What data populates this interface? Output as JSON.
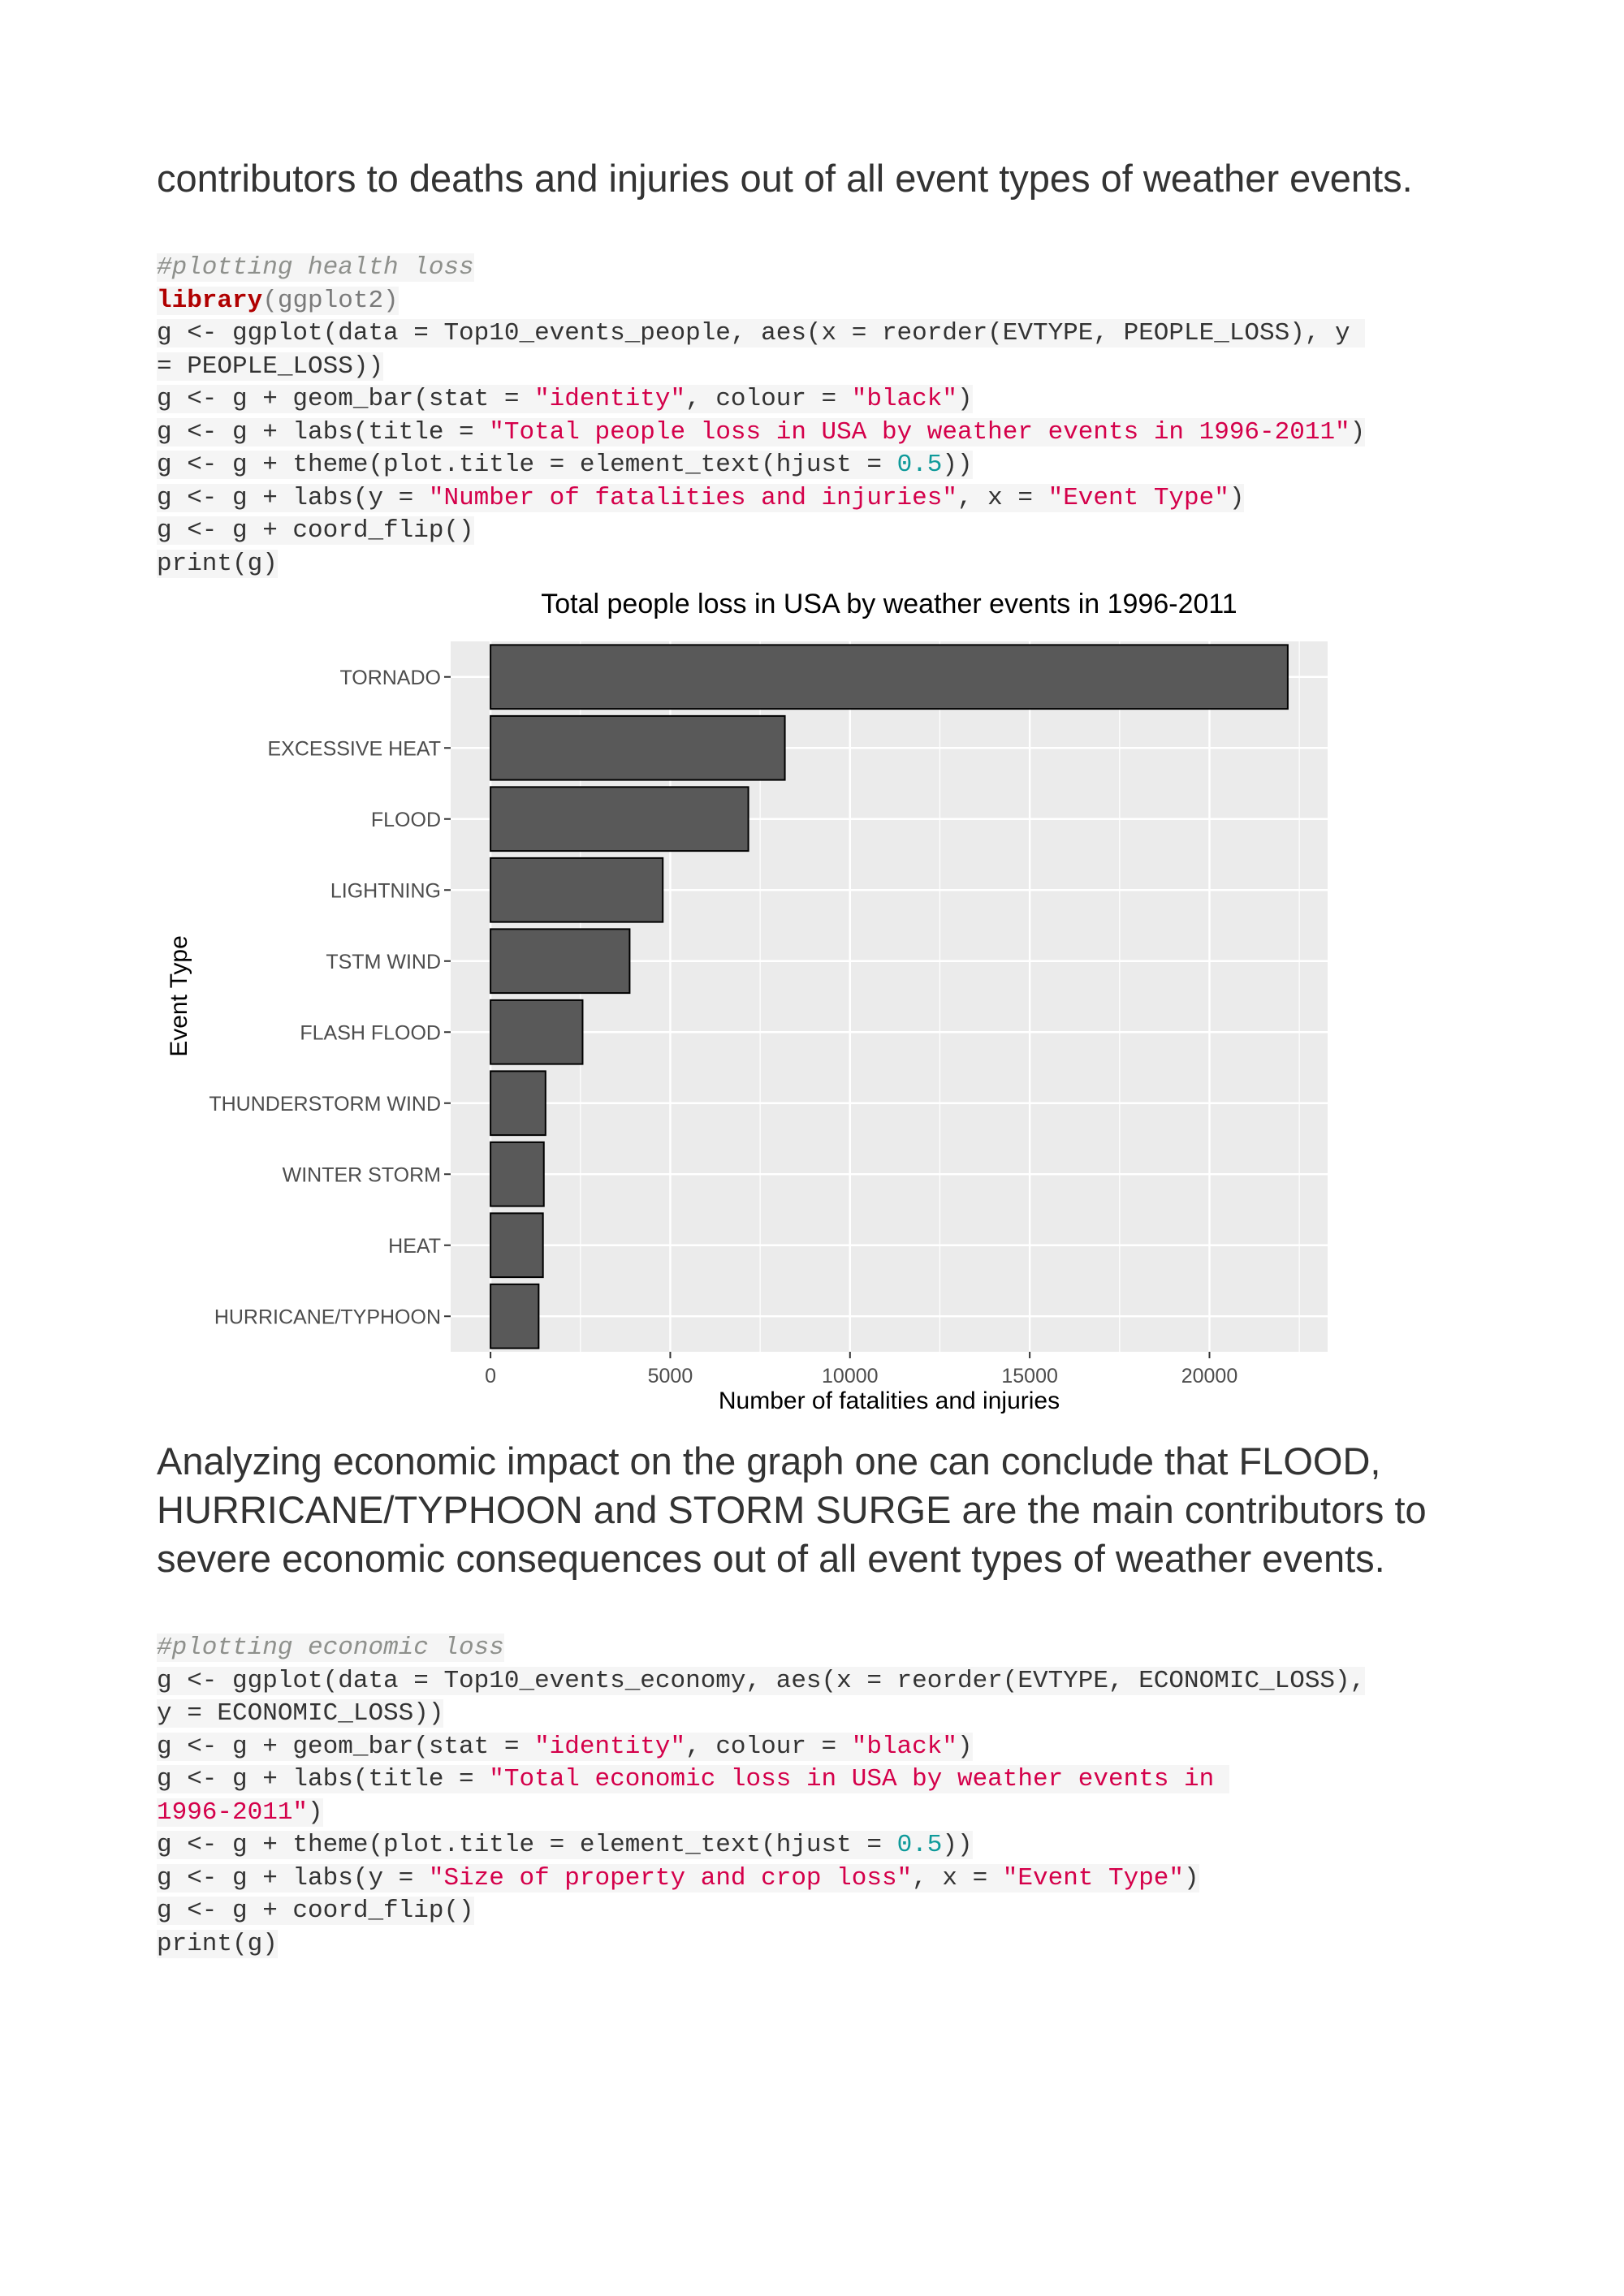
{
  "prose1": "contributors to deaths and injuries out of all event types of weather events.",
  "code1": [
    [
      {
        "t": "#plotting health loss",
        "c": "cmt"
      }
    ],
    [
      {
        "t": "library",
        "c": "kw"
      },
      {
        "t": "(ggplot2)",
        "c": "pun"
      }
    ],
    [
      {
        "t": "g <- ggplot(data = Top10_events_people, aes(x = reorder(EVTYPE, PEOPLE_LOSS), y ",
        "c": ""
      }
    ],
    [
      {
        "t": "= PEOPLE_LOSS))",
        "c": ""
      }
    ],
    [
      {
        "t": "g <- g + geom_bar(stat = ",
        "c": ""
      },
      {
        "t": "\"identity\"",
        "c": "str"
      },
      {
        "t": ", colour = ",
        "c": ""
      },
      {
        "t": "\"black\"",
        "c": "str"
      },
      {
        "t": ")",
        "c": ""
      }
    ],
    [
      {
        "t": "g <- g + labs(title = ",
        "c": ""
      },
      {
        "t": "\"Total people loss in USA by weather events in 1996-2011\"",
        "c": "str"
      },
      {
        "t": ")",
        "c": ""
      }
    ],
    [
      {
        "t": "g <- g + theme(plot.title = element_text(hjust = ",
        "c": ""
      },
      {
        "t": "0.5",
        "c": "num"
      },
      {
        "t": "))",
        "c": ""
      }
    ],
    [
      {
        "t": "g <- g + labs(y = ",
        "c": ""
      },
      {
        "t": "\"Number of fatalities and injuries\"",
        "c": "str"
      },
      {
        "t": ", x = ",
        "c": ""
      },
      {
        "t": "\"Event Type\"",
        "c": "str"
      },
      {
        "t": ")",
        "c": ""
      }
    ],
    [
      {
        "t": "g <- g + coord_flip()",
        "c": ""
      }
    ],
    [
      {
        "t": "print(g)",
        "c": ""
      }
    ]
  ],
  "prose2": "Analyzing economic impact on the graph one can conclude that FLOOD, HURRICANE/TYPHOON and STORM SURGE are the main contributors to severe economic consequences out of all event types of weather events.",
  "code2": [
    [
      {
        "t": "#plotting economic loss",
        "c": "cmt"
      }
    ],
    [
      {
        "t": "g <- ggplot(data = Top10_events_economy, aes(x = reorder(EVTYPE, ECONOMIC_LOSS),",
        "c": ""
      }
    ],
    [
      {
        "t": "y = ECONOMIC_LOSS))",
        "c": ""
      }
    ],
    [
      {
        "t": "g <- g + geom_bar(stat = ",
        "c": ""
      },
      {
        "t": "\"identity\"",
        "c": "str"
      },
      {
        "t": ", colour = ",
        "c": ""
      },
      {
        "t": "\"black\"",
        "c": "str"
      },
      {
        "t": ")",
        "c": ""
      }
    ],
    [
      {
        "t": "g <- g + labs(title = ",
        "c": ""
      },
      {
        "t": "\"Total economic loss in USA by weather events in ",
        "c": "str"
      }
    ],
    [
      {
        "t": "1996-2011\"",
        "c": "str"
      },
      {
        "t": ")",
        "c": ""
      }
    ],
    [
      {
        "t": "g <- g + theme(plot.title = element_text(hjust = ",
        "c": ""
      },
      {
        "t": "0.5",
        "c": "num"
      },
      {
        "t": "))",
        "c": ""
      }
    ],
    [
      {
        "t": "g <- g + labs(y = ",
        "c": ""
      },
      {
        "t": "\"Size of property and crop loss\"",
        "c": "str"
      },
      {
        "t": ", x = ",
        "c": ""
      },
      {
        "t": "\"Event Type\"",
        "c": "str"
      },
      {
        "t": ")",
        "c": ""
      }
    ],
    [
      {
        "t": "g <- g + coord_flip()",
        "c": ""
      }
    ],
    [
      {
        "t": "print(g)",
        "c": ""
      }
    ]
  ],
  "colors": {
    "panel": "#ebebeb",
    "bar": "#595959",
    "grid": "#ffffff",
    "comment": "#8e908c",
    "string": "#d4004a",
    "number": "#0f9a9a",
    "keyword": "#b00000"
  },
  "chart_data": {
    "type": "bar",
    "orientation": "horizontal",
    "title": "Total people loss in USA by weather events in 1996-2011",
    "xlabel": "Event Type",
    "ylabel": "Number of fatalities and injuries",
    "categories": [
      "TORNADO",
      "EXCESSIVE HEAT",
      "FLOOD",
      "LIGHTNING",
      "TSTM WIND",
      "FLASH FLOOD",
      "THUNDERSTORM WIND",
      "WINTER STORM",
      "HEAT",
      "HURRICANE/TYPHOON"
    ],
    "values": [
      22178,
      8188,
      7172,
      4792,
      3870,
      2561,
      1530,
      1483,
      1459,
      1339
    ],
    "ticks": [
      0,
      5000,
      10000,
      15000,
      20000
    ],
    "tick_labels": [
      "0",
      "5000",
      "10000",
      "15000",
      "20000"
    ],
    "ylim": [
      -1109,
      23287
    ],
    "grid": true,
    "legend": "none"
  }
}
